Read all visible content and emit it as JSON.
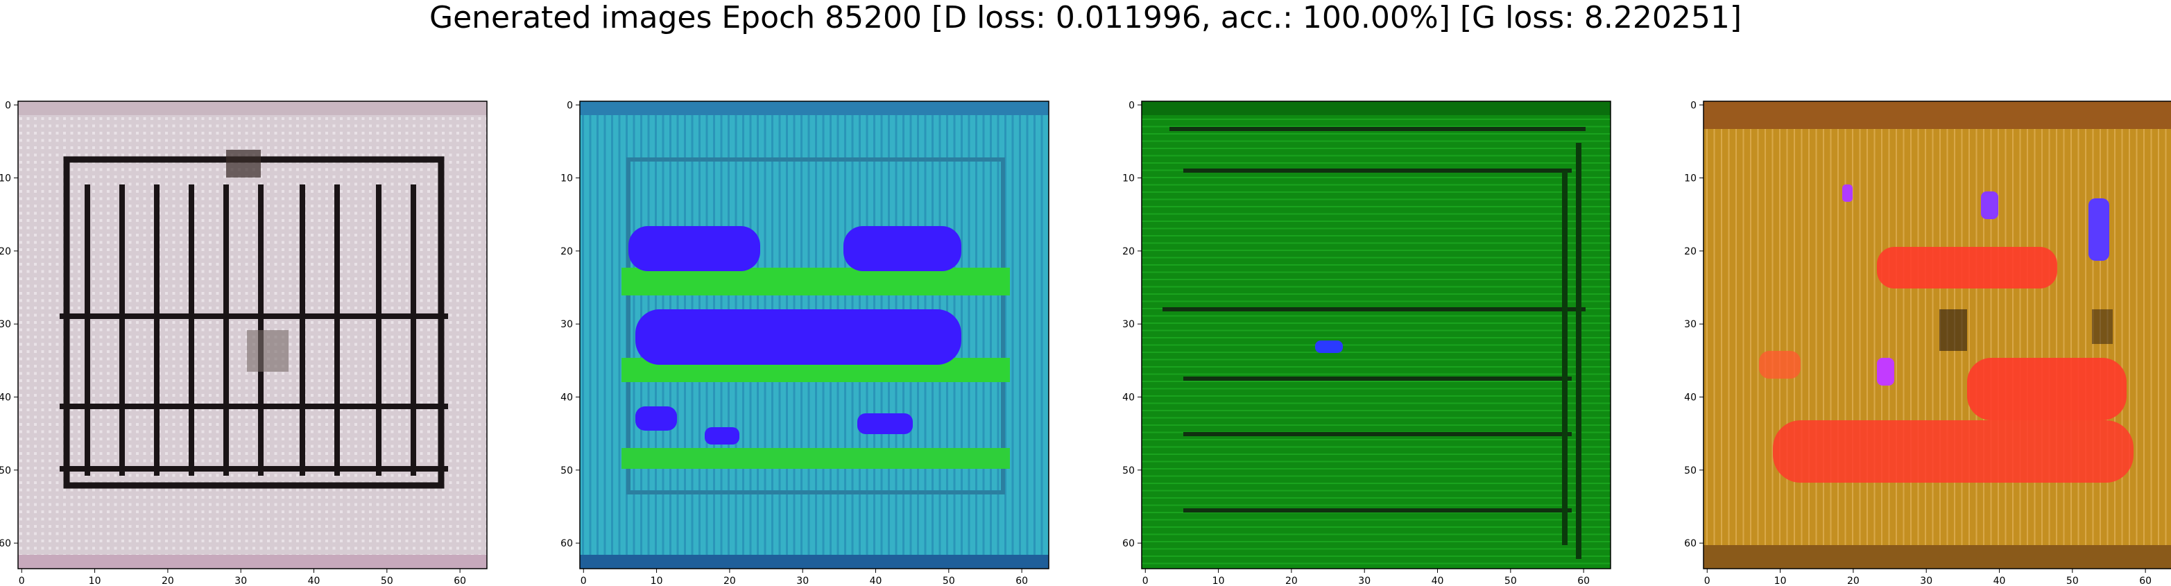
{
  "figure": {
    "title": "Generated images Epoch 85200 [D loss: 0.011996, acc.: 100.00%] [G loss: 8.220251]"
  },
  "axis": {
    "x_ticks": [
      "0",
      "10",
      "20",
      "30",
      "40",
      "50",
      "60"
    ],
    "y_ticks": [
      "0",
      "10",
      "20",
      "30",
      "40",
      "50",
      "60"
    ],
    "range": [
      0,
      63
    ]
  },
  "panels": [
    {
      "id": "image-1",
      "dominant_color": "#d9cdd4",
      "accent_color": "#1a1416"
    },
    {
      "id": "image-2",
      "dominant_color": "#35b3c8",
      "accent_color": "#3b1bff"
    },
    {
      "id": "image-3",
      "dominant_color": "#0f8a12",
      "accent_color": "#103010"
    },
    {
      "id": "image-4",
      "dominant_color": "#c48f21",
      "accent_color": "#ff3b2a"
    }
  ]
}
